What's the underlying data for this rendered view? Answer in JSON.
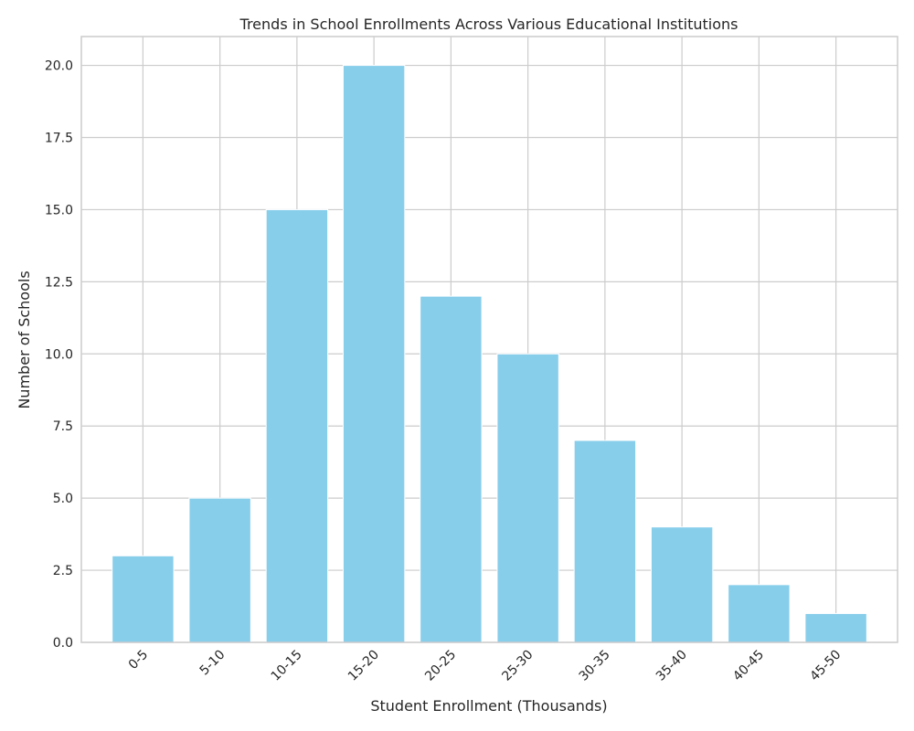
{
  "chart_data": {
    "type": "bar",
    "title": "Trends in School Enrollments Across Various Educational Institutions",
    "xlabel": "Student Enrollment (Thousands)",
    "ylabel": "Number of Schools",
    "categories": [
      "0-5",
      "5-10",
      "10-15",
      "15-20",
      "20-25",
      "25-30",
      "30-35",
      "35-40",
      "40-45",
      "45-50"
    ],
    "values": [
      3,
      5,
      15,
      20,
      12,
      10,
      7,
      4,
      2,
      1
    ],
    "ylim": [
      0,
      21
    ],
    "yticks": [
      0.0,
      2.5,
      5.0,
      7.5,
      10.0,
      12.5,
      15.0,
      17.5,
      20.0
    ],
    "grid": true,
    "bar_color": "#87ceeb"
  }
}
